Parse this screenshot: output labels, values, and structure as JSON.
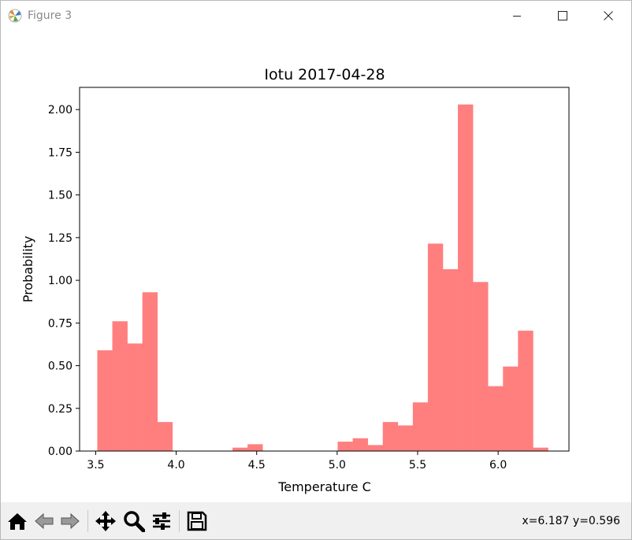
{
  "window": {
    "title": "Figure 3"
  },
  "toolbar": {
    "buttons": [
      "home-icon",
      "back-icon",
      "forward-icon",
      "pan-icon",
      "zoom-icon",
      "configure-subplots-icon",
      "save-icon"
    ],
    "coords_text": "x=6.187 y=0.596"
  },
  "chart_data": {
    "type": "bar",
    "title": "Iotu 2017-04-28",
    "xlabel": "Temperature C",
    "ylabel": "Probability",
    "bar_color": "#ff7f7f",
    "xlim": [
      3.4,
      6.44
    ],
    "ylim": [
      0,
      2.13
    ],
    "xticks": [
      3.5,
      4.0,
      4.5,
      5.0,
      5.5,
      6.0
    ],
    "xtick_labels": [
      "3.5",
      "4.0",
      "4.5",
      "5.0",
      "5.5",
      "6.0"
    ],
    "yticks": [
      0.0,
      0.25,
      0.5,
      0.75,
      1.0,
      1.25,
      1.5,
      1.75,
      2.0
    ],
    "ytick_labels": [
      "0.00",
      "0.25",
      "0.50",
      "0.75",
      "1.00",
      "1.25",
      "1.50",
      "1.75",
      "2.00"
    ],
    "bin_edges": [
      3.51,
      3.6033,
      3.6967,
      3.79,
      3.8833,
      3.9767,
      4.07,
      4.1633,
      4.2567,
      4.35,
      4.4433,
      4.5367,
      4.63,
      4.7233,
      4.8167,
      4.91,
      5.0033,
      5.0967,
      5.19,
      5.2833,
      5.3767,
      5.47,
      5.5633,
      5.6567,
      5.75,
      5.8433,
      5.9367,
      6.03,
      6.1233,
      6.2167,
      6.31
    ],
    "values": [
      0.59,
      0.76,
      0.63,
      0.93,
      0.17,
      0,
      0,
      0,
      0,
      0.02,
      0.04,
      0,
      0,
      0,
      0,
      0,
      0.055,
      0.075,
      0.035,
      0.17,
      0.15,
      0.285,
      1.215,
      1.065,
      2.03,
      0.99,
      0.38,
      0.495,
      0.705,
      0.02
    ],
    "grid": false
  }
}
